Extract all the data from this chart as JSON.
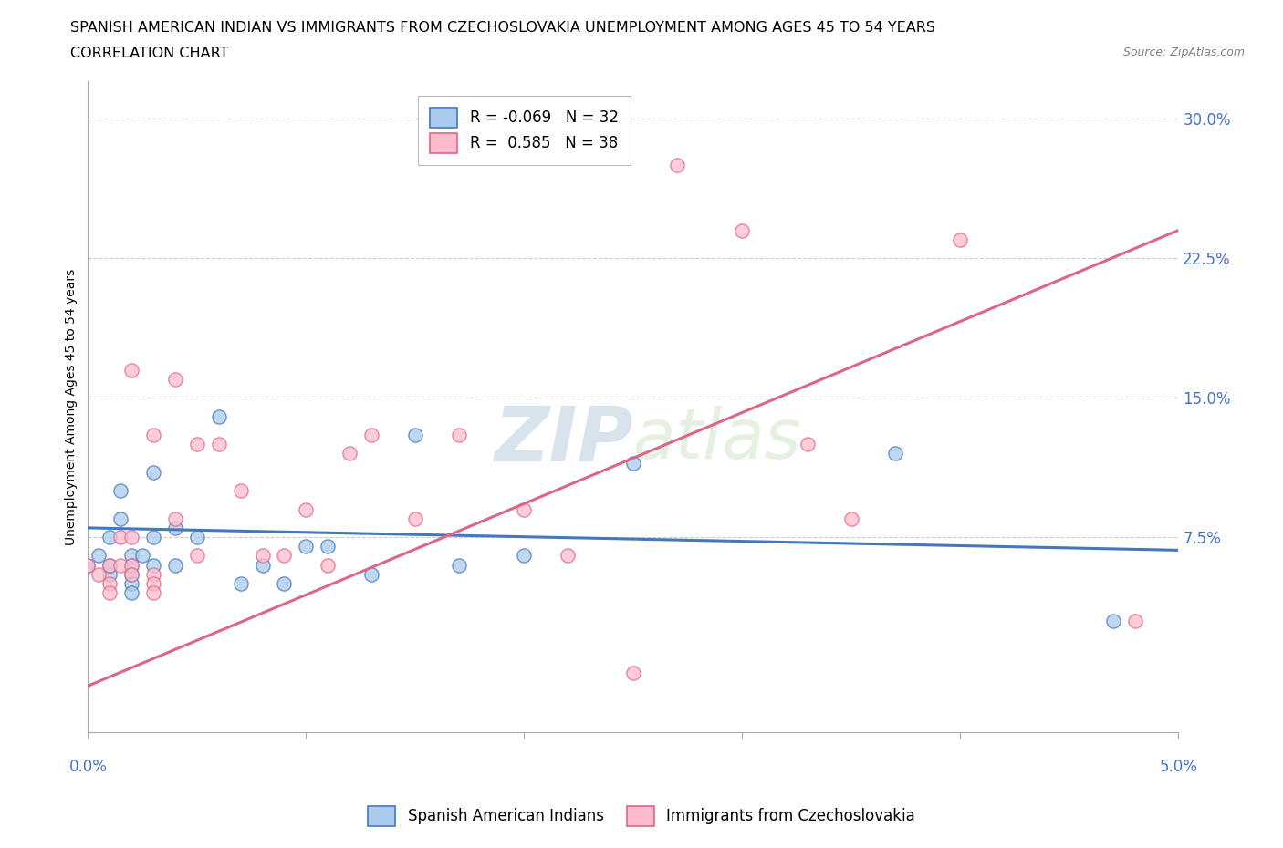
{
  "title_line1": "SPANISH AMERICAN INDIAN VS IMMIGRANTS FROM CZECHOSLOVAKIA UNEMPLOYMENT AMONG AGES 45 TO 54 YEARS",
  "title_line2": "CORRELATION CHART",
  "source": "Source: ZipAtlas.com",
  "ylabel": "Unemployment Among Ages 45 to 54 years",
  "yticks": [
    0.075,
    0.15,
    0.225,
    0.3
  ],
  "ytick_labels": [
    "7.5%",
    "15.0%",
    "22.5%",
    "30.0%"
  ],
  "xlim": [
    0.0,
    0.05
  ],
  "ylim": [
    -0.03,
    0.32
  ],
  "watermark": "ZIPatlas",
  "series": [
    {
      "name": "Spanish American Indians",
      "color": "#aaccee",
      "edge_color": "#4477bb",
      "R": -0.069,
      "N": 32,
      "x": [
        0.0,
        0.0005,
        0.001,
        0.001,
        0.001,
        0.0015,
        0.0015,
        0.002,
        0.002,
        0.002,
        0.002,
        0.002,
        0.0025,
        0.003,
        0.003,
        0.003,
        0.004,
        0.004,
        0.005,
        0.006,
        0.007,
        0.008,
        0.009,
        0.01,
        0.011,
        0.013,
        0.015,
        0.017,
        0.02,
        0.025,
        0.037,
        0.047
      ],
      "y": [
        0.06,
        0.065,
        0.055,
        0.075,
        0.06,
        0.085,
        0.1,
        0.065,
        0.06,
        0.055,
        0.05,
        0.045,
        0.065,
        0.11,
        0.075,
        0.06,
        0.08,
        0.06,
        0.075,
        0.14,
        0.05,
        0.06,
        0.05,
        0.07,
        0.07,
        0.055,
        0.13,
        0.06,
        0.065,
        0.115,
        0.12,
        0.03
      ],
      "trend_x": [
        0.0,
        0.05
      ],
      "trend_y": [
        0.08,
        0.068
      ]
    },
    {
      "name": "Immigrants from Czechoslovakia",
      "color": "#ffbbcc",
      "edge_color": "#dd6688",
      "R": 0.585,
      "N": 38,
      "x": [
        0.0,
        0.0005,
        0.001,
        0.001,
        0.001,
        0.0015,
        0.0015,
        0.002,
        0.002,
        0.002,
        0.002,
        0.003,
        0.003,
        0.003,
        0.003,
        0.004,
        0.004,
        0.005,
        0.005,
        0.006,
        0.007,
        0.008,
        0.009,
        0.01,
        0.011,
        0.012,
        0.013,
        0.015,
        0.017,
        0.02,
        0.022,
        0.025,
        0.027,
        0.03,
        0.033,
        0.035,
        0.04,
        0.048
      ],
      "y": [
        0.06,
        0.055,
        0.06,
        0.05,
        0.045,
        0.075,
        0.06,
        0.165,
        0.075,
        0.06,
        0.055,
        0.13,
        0.055,
        0.05,
        0.045,
        0.16,
        0.085,
        0.125,
        0.065,
        0.125,
        0.1,
        0.065,
        0.065,
        0.09,
        0.06,
        0.12,
        0.13,
        0.085,
        0.13,
        0.09,
        0.065,
        0.002,
        0.275,
        0.24,
        0.125,
        0.085,
        0.235,
        0.03
      ],
      "trend_x": [
        0.0,
        0.05
      ],
      "trend_y": [
        -0.005,
        0.24
      ]
    }
  ],
  "legend_R_blue": "-0.069",
  "legend_N_blue": "32",
  "legend_R_pink": "0.585",
  "legend_N_pink": "38",
  "title_fontsize": 11.5,
  "axis_label_fontsize": 10,
  "tick_fontsize": 12,
  "legend_fontsize": 12
}
